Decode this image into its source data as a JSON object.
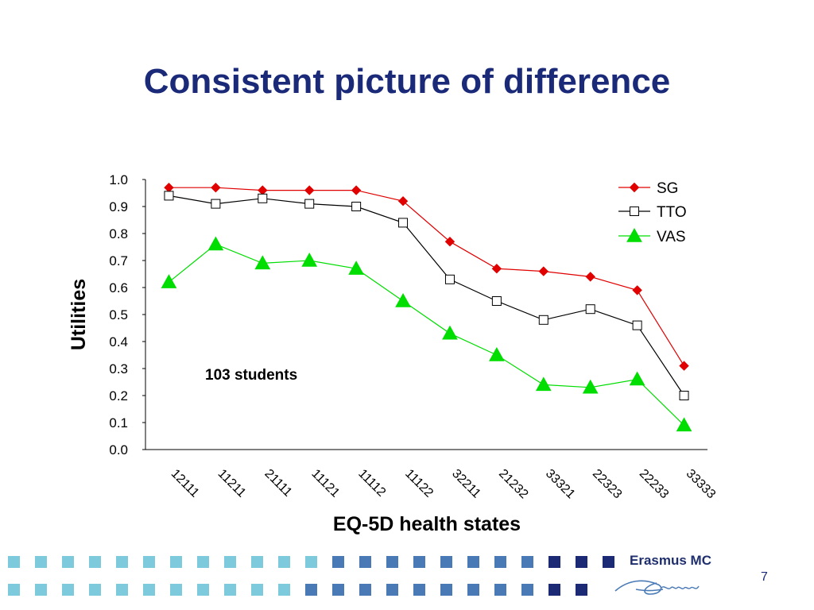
{
  "slide": {
    "title": "Consistent picture of difference",
    "page_number": "7",
    "logo_text": "Erasmus MC",
    "logo_signature": "Zafung"
  },
  "chart_data": {
    "type": "line",
    "categories": [
      "12111",
      "11211",
      "21111",
      "11121",
      "11112",
      "11122",
      "32211",
      "21232",
      "33321",
      "22323",
      "22233",
      "33333"
    ],
    "series": [
      {
        "name": "SG",
        "color": "#e00000",
        "marker": "diamond",
        "values": [
          0.97,
          0.97,
          0.96,
          0.96,
          0.96,
          0.92,
          0.77,
          0.67,
          0.66,
          0.64,
          0.59,
          0.31
        ]
      },
      {
        "name": "TTO",
        "color": "#000000",
        "marker": "square",
        "values": [
          0.94,
          0.91,
          0.93,
          0.91,
          0.9,
          0.84,
          0.63,
          0.55,
          0.48,
          0.52,
          0.46,
          0.2
        ]
      },
      {
        "name": "VAS",
        "color": "#00dd00",
        "marker": "triangle",
        "values": [
          0.62,
          0.76,
          0.69,
          0.7,
          0.67,
          0.55,
          0.43,
          0.35,
          0.24,
          0.23,
          0.26,
          0.09
        ]
      }
    ],
    "ylim": [
      0,
      1.0
    ],
    "yticks": [
      "0.0",
      "0.1",
      "0.2",
      "0.3",
      "0.4",
      "0.5",
      "0.6",
      "0.7",
      "0.8",
      "0.9",
      "1.0"
    ],
    "xlabel": "EQ-5D health states",
    "ylabel": "Utilities",
    "annotation": "103 students",
    "legend_position": "top-right",
    "grid": false
  },
  "footer_squares": {
    "colors": {
      "light": "#7ecadd",
      "mid": "#4a7ab6",
      "dark": "#1c2a76"
    },
    "row1": [
      "light",
      "light",
      "light",
      "light",
      "light",
      "light",
      "light",
      "light",
      "light",
      "light",
      "light",
      "light",
      "mid",
      "mid",
      "mid",
      "mid",
      "mid",
      "mid",
      "mid",
      "mid",
      "dark",
      "dark",
      "dark"
    ],
    "row2": [
      "light",
      "light",
      "light",
      "light",
      "light",
      "light",
      "light",
      "light",
      "light",
      "light",
      "light",
      "mid",
      "mid",
      "mid",
      "mid",
      "mid",
      "mid",
      "mid",
      "mid",
      "mid",
      "dark",
      "dark"
    ]
  }
}
